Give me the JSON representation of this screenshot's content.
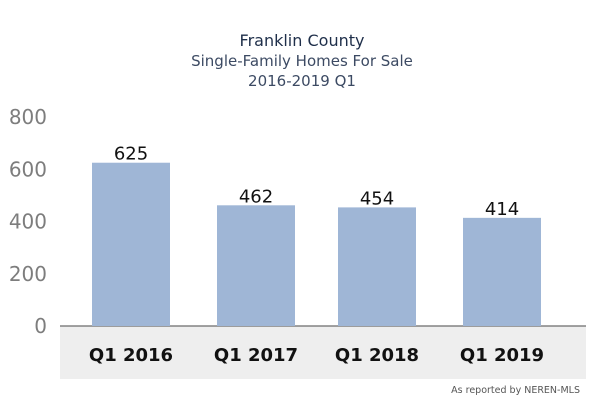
{
  "chart_data": {
    "type": "bar",
    "title": "Franklin County",
    "subtitle": "Single-Family Homes For Sale",
    "subtitle2": "2016-2019 Q1",
    "categories": [
      "Q1 2016",
      "Q1 2017",
      "Q1 2018",
      "Q1 2019"
    ],
    "values": [
      625,
      462,
      454,
      414
    ],
    "data_labels": [
      "625",
      "462",
      "454",
      "414"
    ],
    "ylim": [
      0,
      800
    ],
    "yticks": [
      0,
      200,
      400,
      600,
      800
    ],
    "xlabel": "",
    "ylabel": "",
    "grid": false,
    "bar_color": "#9fb6d6",
    "axis_band_color": "#eeeeee"
  },
  "footnote": "As reported by NEREN-MLS"
}
